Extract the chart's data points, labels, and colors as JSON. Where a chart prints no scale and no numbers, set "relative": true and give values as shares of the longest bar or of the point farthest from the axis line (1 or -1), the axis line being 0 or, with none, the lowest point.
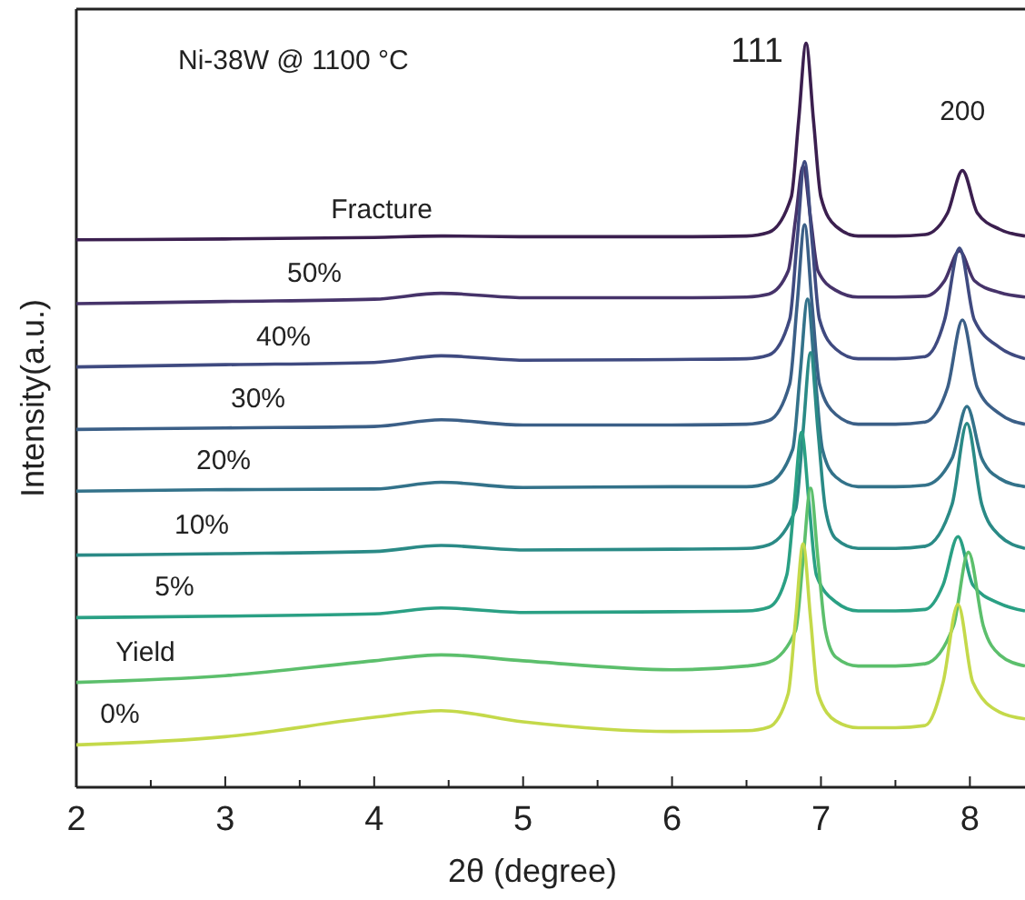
{
  "chart_data": {
    "type": "line",
    "relative": true,
    "xlabel": "2θ (degree)",
    "ylabel": "Intensity(a.u.)",
    "xlim": [
      2,
      8.37
    ],
    "xticks": [
      2,
      {
        "value": 2.5,
        "label": null
      },
      3,
      {
        "value": 3.5,
        "label": null
      },
      4,
      {
        "value": 4.5,
        "label": null
      },
      5,
      {
        "value": 5.5,
        "label": null
      },
      6,
      {
        "value": 6.5,
        "label": null
      },
      7,
      {
        "value": 7.5,
        "label": null
      },
      8
    ],
    "annotations": [
      "Ni-38W @ 1100 °C",
      {
        "text": "111",
        "x": 6.9,
        "y": 1.0
      },
      {
        "text": "200",
        "x": 7.95,
        "y": 0.829
      }
    ],
    "series": [
      {
        "name": "Fracture",
        "color": "#3b1f4f",
        "x": [
          2,
          3,
          4,
          4.45,
          5,
          6,
          6.5,
          6.65,
          6.8,
          6.85,
          6.9,
          6.95,
          7.0,
          7.1,
          7.25,
          7.5,
          7.7,
          7.85,
          7.95,
          8.05,
          8.2,
          8.37
        ],
        "values": [
          0.736,
          0.737,
          0.739,
          0.741,
          0.74,
          0.74,
          0.741,
          0.746,
          0.793,
          0.896,
          1.0,
          0.896,
          0.793,
          0.754,
          0.741,
          0.741,
          0.743,
          0.772,
          0.829,
          0.772,
          0.75,
          0.741
        ]
      },
      {
        "name": "50%",
        "color": "#46336a",
        "x": [
          2,
          3,
          4,
          4.45,
          5,
          6,
          6.5,
          6.65,
          6.78,
          6.83,
          6.88,
          6.93,
          6.98,
          7.1,
          7.25,
          7.5,
          7.7,
          7.83,
          7.93,
          8.03,
          8.2,
          8.37
        ],
        "values": [
          0.65,
          0.653,
          0.656,
          0.664,
          0.658,
          0.658,
          0.659,
          0.663,
          0.694,
          0.765,
          0.835,
          0.765,
          0.694,
          0.668,
          0.659,
          0.659,
          0.66,
          0.681,
          0.721,
          0.681,
          0.665,
          0.659
        ]
      },
      {
        "name": "40%",
        "color": "#3f4a80",
        "x": [
          2,
          3,
          4,
          4.45,
          5,
          6,
          6.5,
          6.65,
          6.79,
          6.84,
          6.89,
          6.94,
          6.99,
          7.1,
          7.25,
          7.5,
          7.7,
          7.83,
          7.93,
          8.03,
          8.2,
          8.37
        ],
        "values": [
          0.565,
          0.568,
          0.571,
          0.58,
          0.574,
          0.575,
          0.576,
          0.581,
          0.629,
          0.735,
          0.841,
          0.735,
          0.629,
          0.589,
          0.576,
          0.576,
          0.579,
          0.628,
          0.725,
          0.628,
          0.591,
          0.576
        ]
      },
      {
        "name": "30%",
        "color": "#3b5f87",
        "x": [
          2,
          3,
          4,
          4.45,
          5,
          6,
          6.5,
          6.65,
          6.79,
          6.84,
          6.89,
          6.94,
          6.99,
          7.1,
          7.25,
          7.5,
          7.7,
          7.85,
          7.95,
          8.05,
          8.2,
          8.37
        ],
        "values": [
          0.481,
          0.483,
          0.485,
          0.494,
          0.487,
          0.487,
          0.488,
          0.493,
          0.542,
          0.649,
          0.756,
          0.649,
          0.542,
          0.501,
          0.488,
          0.488,
          0.491,
          0.537,
          0.628,
          0.537,
          0.502,
          0.488
        ]
      },
      {
        "name": "20%",
        "color": "#33728a",
        "x": [
          2,
          3,
          4,
          4.45,
          5,
          6,
          6.5,
          6.65,
          6.81,
          6.86,
          6.91,
          6.96,
          7.01,
          7.1,
          7.25,
          7.5,
          7.7,
          7.88,
          7.98,
          8.08,
          8.2,
          8.37
        ],
        "values": [
          0.398,
          0.4,
          0.401,
          0.41,
          0.403,
          0.404,
          0.404,
          0.409,
          0.454,
          0.555,
          0.656,
          0.555,
          0.454,
          0.417,
          0.404,
          0.404,
          0.406,
          0.442,
          0.512,
          0.442,
          0.415,
          0.404
        ]
      },
      {
        "name": "10%",
        "color": "#2a8a86",
        "x": [
          2,
          3,
          4,
          4.45,
          5,
          6,
          6.5,
          6.65,
          6.83,
          6.88,
          6.93,
          6.98,
          7.03,
          7.1,
          7.25,
          7.5,
          7.7,
          7.88,
          7.98,
          8.08,
          8.2,
          8.37
        ],
        "values": [
          0.312,
          0.314,
          0.317,
          0.325,
          0.319,
          0.32,
          0.321,
          0.326,
          0.374,
          0.479,
          0.584,
          0.479,
          0.374,
          0.334,
          0.321,
          0.321,
          0.324,
          0.38,
          0.489,
          0.38,
          0.338,
          0.321
        ]
      },
      {
        "name": "5%",
        "color": "#2aa084",
        "x": [
          2,
          3,
          4,
          4.45,
          5,
          6,
          6.5,
          6.65,
          6.77,
          6.82,
          6.87,
          6.92,
          6.97,
          7.1,
          7.25,
          7.5,
          7.7,
          7.82,
          7.92,
          8.02,
          8.2,
          8.37
        ],
        "values": [
          0.228,
          0.23,
          0.233,
          0.241,
          0.235,
          0.236,
          0.237,
          0.242,
          0.285,
          0.381,
          0.477,
          0.381,
          0.285,
          0.249,
          0.237,
          0.237,
          0.239,
          0.272,
          0.337,
          0.272,
          0.247,
          0.237
        ]
      },
      {
        "name": "Yield",
        "color": "#5cbf6c",
        "x": [
          2,
          3,
          4,
          4.45,
          5,
          6,
          6.5,
          6.65,
          6.83,
          6.88,
          6.93,
          6.98,
          7.03,
          7.1,
          7.25,
          7.5,
          7.7,
          7.89,
          7.99,
          8.09,
          8.2,
          8.37
        ],
        "values": [
          0.141,
          0.15,
          0.17,
          0.178,
          0.17,
          0.158,
          0.163,
          0.168,
          0.211,
          0.306,
          0.402,
          0.306,
          0.211,
          0.175,
          0.163,
          0.163,
          0.166,
          0.217,
          0.316,
          0.217,
          0.178,
          0.163
        ]
      },
      {
        "name": "0%",
        "color": "#c4d94a",
        "x": [
          2,
          3,
          4,
          4.45,
          5,
          6,
          6.5,
          6.65,
          6.78,
          6.83,
          6.88,
          6.93,
          6.98,
          7.1,
          7.25,
          7.5,
          7.7,
          7.82,
          7.92,
          8.02,
          8.2,
          8.37
        ],
        "values": [
          0.057,
          0.068,
          0.094,
          0.103,
          0.088,
          0.075,
          0.076,
          0.081,
          0.126,
          0.227,
          0.327,
          0.227,
          0.126,
          0.089,
          0.08,
          0.08,
          0.083,
          0.141,
          0.246,
          0.141,
          0.101,
          0.092
        ]
      }
    ]
  }
}
